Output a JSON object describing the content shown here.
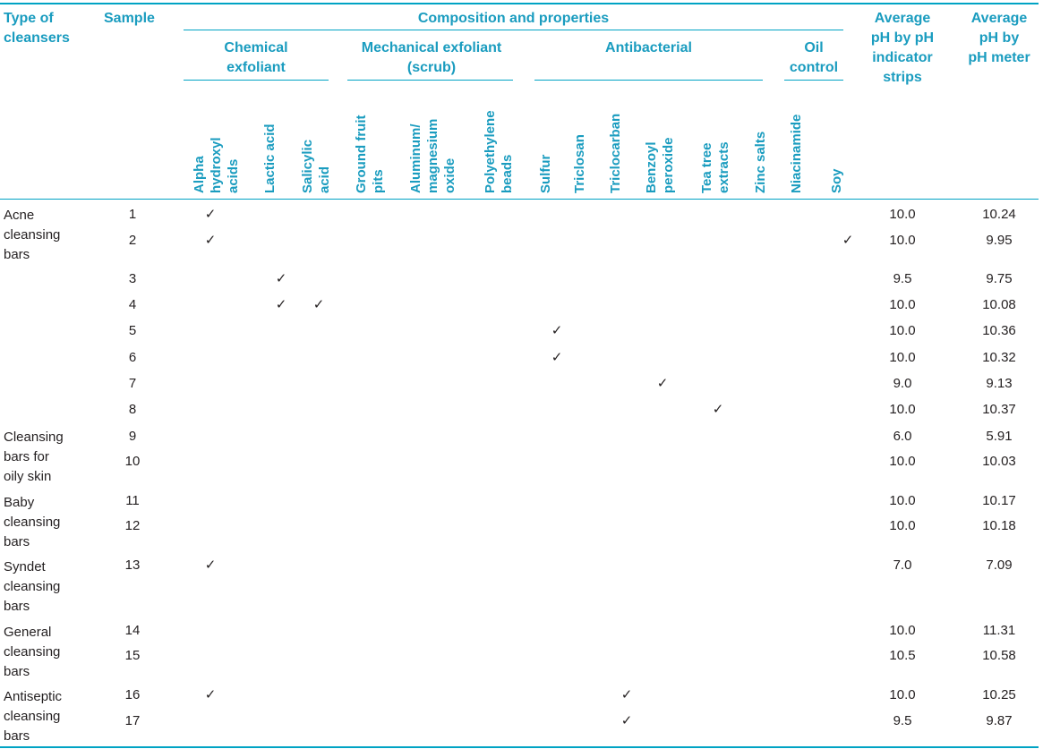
{
  "header": {
    "type_of_cleansers": "Type of\ncleansers",
    "sample": "Sample",
    "composition": "Composition and properties",
    "groups": {
      "chemical": "Chemical\nexfoliant",
      "mechanical": "Mechanical exfoliant\n(scrub)",
      "antibacterial": "Antibacterial",
      "oil": "Oil\ncontrol"
    },
    "avg_strips": "Average\npH by pH\nindicator\nstrips",
    "avg_meter": "Average\npH by\npH meter"
  },
  "ingredients": [
    "Alpha\nhydroxyl\nacids",
    "Lactic acid",
    "Salicylic\nacid",
    "Ground fruit\npits",
    "Aluminum/\nmagnesium\noxide",
    "Polyethylene\nbeads",
    "Sulfur",
    "Triclosan",
    "Triclocarban",
    "Benzoyl\nperoxide",
    "Tea tree\nextracts",
    "Zinc salts",
    "Niacinamide",
    "Soy"
  ],
  "check_mark": "✓",
  "groups": [
    {
      "name": "Acne\ncleansing\nbars"
    },
    {
      "name": "Cleansing\nbars for\noily skin"
    },
    {
      "name": "Baby\ncleansing\nbars"
    },
    {
      "name": "Syndet\ncleansing\nbars"
    },
    {
      "name": "General\ncleansing\nbars"
    },
    {
      "name": "Antiseptic\ncleansing\nbars"
    }
  ],
  "rows": [
    {
      "sample": "1",
      "strips": "10.0",
      "meter": "10.24",
      "checks": [
        "Alpha\nhydroxyl\nacids"
      ]
    },
    {
      "sample": "2",
      "strips": "10.0",
      "meter": "9.95",
      "checks": [
        "Alpha\nhydroxyl\nacids",
        "Soy"
      ]
    },
    {
      "sample": "3",
      "strips": "9.5",
      "meter": "9.75",
      "checks": [
        "Lactic acid"
      ]
    },
    {
      "sample": "4",
      "strips": "10.0",
      "meter": "10.08",
      "checks": [
        "Lactic acid",
        "Salicylic\nacid"
      ]
    },
    {
      "sample": "5",
      "strips": "10.0",
      "meter": "10.36",
      "checks": [
        "Sulfur"
      ]
    },
    {
      "sample": "6",
      "strips": "10.0",
      "meter": "10.32",
      "checks": [
        "Sulfur"
      ]
    },
    {
      "sample": "7",
      "strips": "9.0",
      "meter": "9.13",
      "checks": [
        "Benzoyl\nperoxide"
      ]
    },
    {
      "sample": "8",
      "strips": "10.0",
      "meter": "10.37",
      "checks": [
        "Tea tree\nextracts"
      ]
    },
    {
      "sample": "9",
      "strips": "6.0",
      "meter": "5.91",
      "checks": []
    },
    {
      "sample": "10",
      "strips": "10.0",
      "meter": "10.03",
      "checks": []
    },
    {
      "sample": "11",
      "strips": "10.0",
      "meter": "10.17",
      "checks": []
    },
    {
      "sample": "12",
      "strips": "10.0",
      "meter": "10.18",
      "checks": []
    },
    {
      "sample": "13",
      "strips": "7.0",
      "meter": "7.09",
      "checks": [
        "Alpha\nhydroxyl\nacids"
      ]
    },
    {
      "sample": "14",
      "strips": "10.0",
      "meter": "11.31",
      "checks": []
    },
    {
      "sample": "15",
      "strips": "10.5",
      "meter": "10.58",
      "checks": []
    },
    {
      "sample": "16",
      "strips": "10.0",
      "meter": "10.25",
      "checks": [
        "Alpha\nhydroxyl\nacids",
        "Triclocarban"
      ]
    },
    {
      "sample": "17",
      "strips": "9.5",
      "meter": "9.87",
      "checks": [
        "Triclocarban"
      ]
    }
  ]
}
